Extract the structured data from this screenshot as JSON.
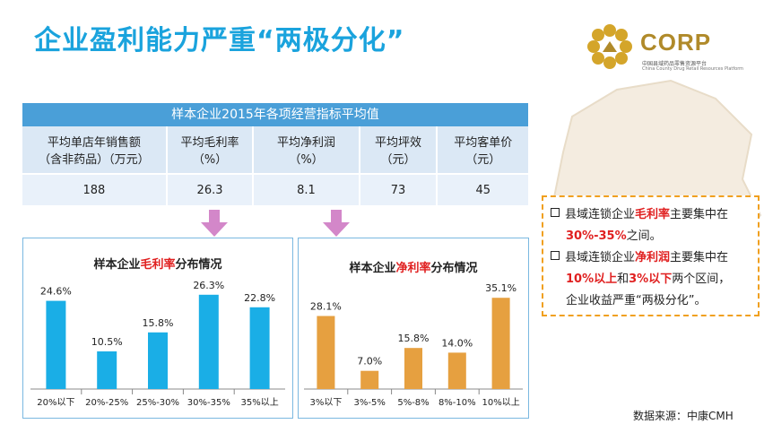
{
  "header": {
    "title": "企业盈利能力严重“两极分化”"
  },
  "logo": {
    "text": "CORP",
    "sub1": "中国县域药品零售资源平台",
    "sub2": "China County Drug Retail Resources Platform"
  },
  "table": {
    "title": "样本企业2015年各项经营指标平均值",
    "headers": [
      {
        "line1": "平均单店年销售额",
        "line2": "（含非药品）（万元）"
      },
      {
        "line1": "平均毛利率",
        "line2": "（%）"
      },
      {
        "line1": "平均净利润",
        "line2": "（%）"
      },
      {
        "line1": "平均坪效",
        "line2": "（元）"
      },
      {
        "line1": "平均客单价",
        "line2": "（元）"
      }
    ],
    "values": [
      "188",
      "26.3",
      "8.1",
      "73",
      "45"
    ]
  },
  "chart_data": [
    {
      "type": "bar",
      "title_prefix": "样本企业",
      "title_highlight": "毛利率",
      "title_suffix": "分布情况",
      "categories": [
        "20%以下",
        "20%-25%",
        "25%-30%",
        "30%-35%",
        "35%以上"
      ],
      "values": [
        24.6,
        10.5,
        15.8,
        26.3,
        22.8
      ],
      "labels": [
        "24.6%",
        "10.5%",
        "15.8%",
        "26.3%",
        "22.8%"
      ],
      "color": "#1aaee6",
      "ylim": [
        0,
        30
      ]
    },
    {
      "type": "bar",
      "title_prefix": "样本企业",
      "title_highlight": "净利率",
      "title_suffix": "分布情况",
      "categories": [
        "3%以下",
        "3%-5%",
        "5%-8%",
        "8%-10%",
        "10%以上"
      ],
      "values": [
        28.1,
        7.0,
        15.8,
        14.0,
        35.1
      ],
      "labels": [
        "28.1%",
        "7.0%",
        "15.8%",
        "14.0%",
        "35.1%"
      ],
      "color": "#e6a040",
      "ylim": [
        0,
        40
      ]
    }
  ],
  "note": {
    "p1_a": "县域连锁企业",
    "p1_red": "毛利率",
    "p1_b": "主要集中在",
    "p1_red2": "30%-35%",
    "p1_c": "之间。",
    "p2_a": "县域连锁企业",
    "p2_red": "净利润",
    "p2_b": "主要集中在",
    "p2_red2": "10%以上",
    "p2_c": "和",
    "p2_red3": "3%以下",
    "p2_d": "两个区间，",
    "p2_e": "企业收益严重“两极分化”。"
  },
  "footer": {
    "source": "数据来源：中康CMH"
  },
  "colors": {
    "title": "#1aa3dd",
    "table_head": "#4a9fd8",
    "arrow": "#d387c9",
    "accent_red": "#e02020"
  }
}
